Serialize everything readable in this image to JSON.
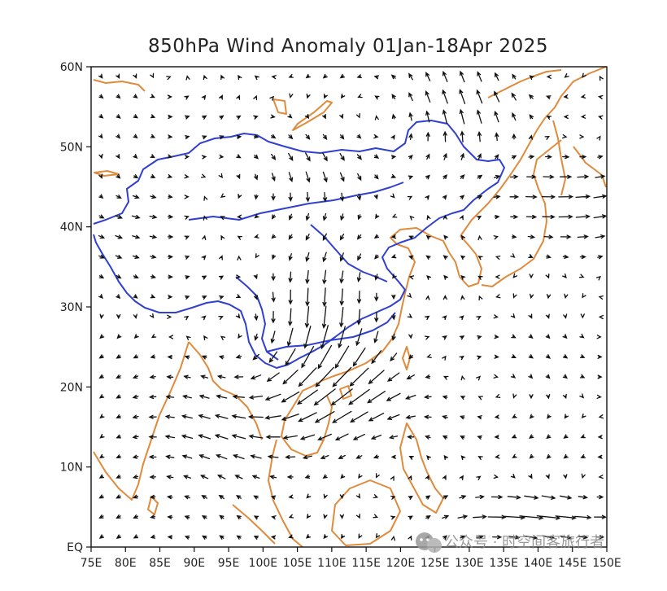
{
  "map": {
    "title": "850hPa Wind Anomaly 01Jan-18Apr 2025",
    "lon_range": [
      75,
      150
    ],
    "lat_range": [
      0,
      60
    ],
    "x_ticks": [
      "75E",
      "80E",
      "85E",
      "90E",
      "95E",
      "100E",
      "105E",
      "110E",
      "115E",
      "120E",
      "125E",
      "130E",
      "135E",
      "140E",
      "145E",
      "150E"
    ],
    "y_ticks": [
      "EQ",
      "10N",
      "20N",
      "30N",
      "40N",
      "50N",
      "60N"
    ],
    "colors": {
      "coastline": "#e08a3c",
      "china_border": "#2f3fd0",
      "vectors": "#111111"
    }
  },
  "watermark": {
    "text": "公众号 · 时空间客旅行者",
    "icon": "wechat-icon"
  }
}
